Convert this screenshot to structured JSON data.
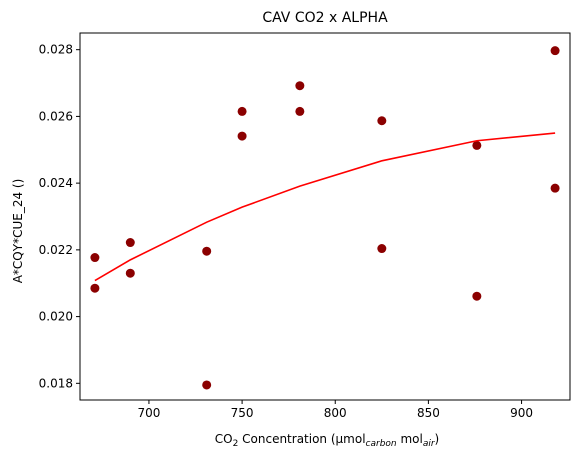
{
  "chart_data": {
    "type": "scatter",
    "title": "CAV CO2 x ALPHA",
    "xlabel": {
      "parts": [
        {
          "text": "CO",
          "style": "normal"
        },
        {
          "text": "2",
          "style": "sub"
        },
        {
          "text": " Concentration (μmol",
          "style": "normal"
        },
        {
          "text": "carbon",
          "style": "sub-italic"
        },
        {
          "text": " mol",
          "style": "normal"
        },
        {
          "text": "air",
          "style": "sub-italic"
        },
        {
          "text": ")",
          "style": "normal"
        }
      ]
    },
    "ylabel": "A*CQY*CUE_24 ()",
    "xlim": [
      663,
      926
    ],
    "ylim": [
      0.0175,
      0.0285
    ],
    "xticks": [
      {
        "value": 700,
        "label": "700"
      },
      {
        "value": 750,
        "label": "750"
      },
      {
        "value": 800,
        "label": "800"
      },
      {
        "value": 850,
        "label": "850"
      },
      {
        "value": 900,
        "label": "900"
      }
    ],
    "yticks": [
      {
        "value": 0.018,
        "label": "0.018"
      },
      {
        "value": 0.02,
        "label": "0.020"
      },
      {
        "value": 0.022,
        "label": "0.022"
      },
      {
        "value": 0.024,
        "label": "0.024"
      },
      {
        "value": 0.026,
        "label": "0.026"
      },
      {
        "value": 0.028,
        "label": "0.028"
      }
    ],
    "grid": false,
    "series": [
      {
        "type": "scatter",
        "color": "#8b0000",
        "points": [
          {
            "x": 671,
            "y": 0.02085
          },
          {
            "x": 671,
            "y": 0.02177
          },
          {
            "x": 690,
            "y": 0.0213
          },
          {
            "x": 690,
            "y": 0.02222
          },
          {
            "x": 731,
            "y": 0.01795
          },
          {
            "x": 731,
            "y": 0.02196
          },
          {
            "x": 750,
            "y": 0.02541
          },
          {
            "x": 750,
            "y": 0.02615
          },
          {
            "x": 781,
            "y": 0.02615
          },
          {
            "x": 781,
            "y": 0.02692
          },
          {
            "x": 825,
            "y": 0.02204
          },
          {
            "x": 825,
            "y": 0.02587
          },
          {
            "x": 876,
            "y": 0.02061
          },
          {
            "x": 876,
            "y": 0.02513
          },
          {
            "x": 918,
            "y": 0.02385
          },
          {
            "x": 918,
            "y": 0.02797
          }
        ]
      },
      {
        "type": "line",
        "color": "#ff0000",
        "points": [
          {
            "x": 671,
            "y": 0.02108
          },
          {
            "x": 690,
            "y": 0.0217
          },
          {
            "x": 731,
            "y": 0.02283
          },
          {
            "x": 750,
            "y": 0.02328
          },
          {
            "x": 781,
            "y": 0.02391
          },
          {
            "x": 825,
            "y": 0.02467
          },
          {
            "x": 876,
            "y": 0.02527
          },
          {
            "x": 918,
            "y": 0.0255
          }
        ]
      }
    ]
  }
}
